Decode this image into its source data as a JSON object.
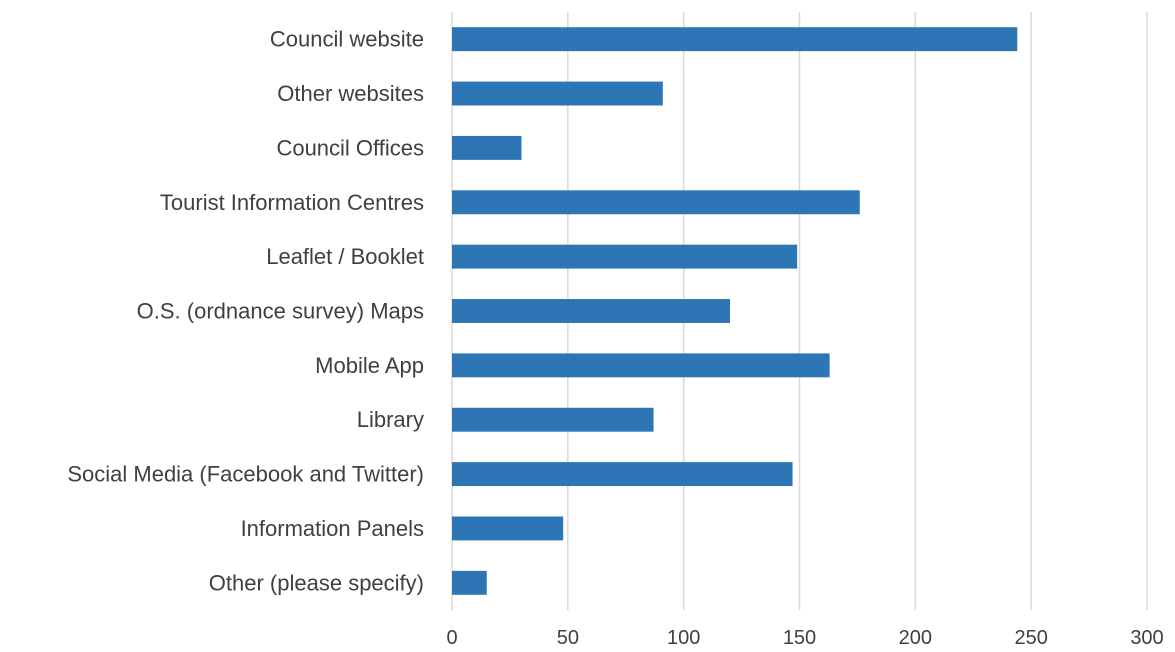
{
  "chart_data": {
    "type": "bar",
    "orientation": "horizontal",
    "title": "",
    "xlabel": "",
    "ylabel": "",
    "categories": [
      "Council website",
      "Other websites",
      "Council Offices",
      "Tourist Information Centres",
      "Leaflet / Booklet",
      "O.S. (ordnance survey) Maps",
      "Mobile App",
      "Library",
      "Social Media (Facebook and Twitter)",
      "Information Panels",
      "Other (please specify)"
    ],
    "values": [
      244,
      91,
      30,
      176,
      149,
      120,
      163,
      87,
      147,
      48,
      15
    ],
    "xlim": [
      0,
      300
    ],
    "xticks": [
      "0",
      "50",
      "100",
      "150",
      "200",
      "250",
      "300"
    ],
    "grid": true,
    "legend": "none",
    "bar_color": "#2e75b6"
  }
}
